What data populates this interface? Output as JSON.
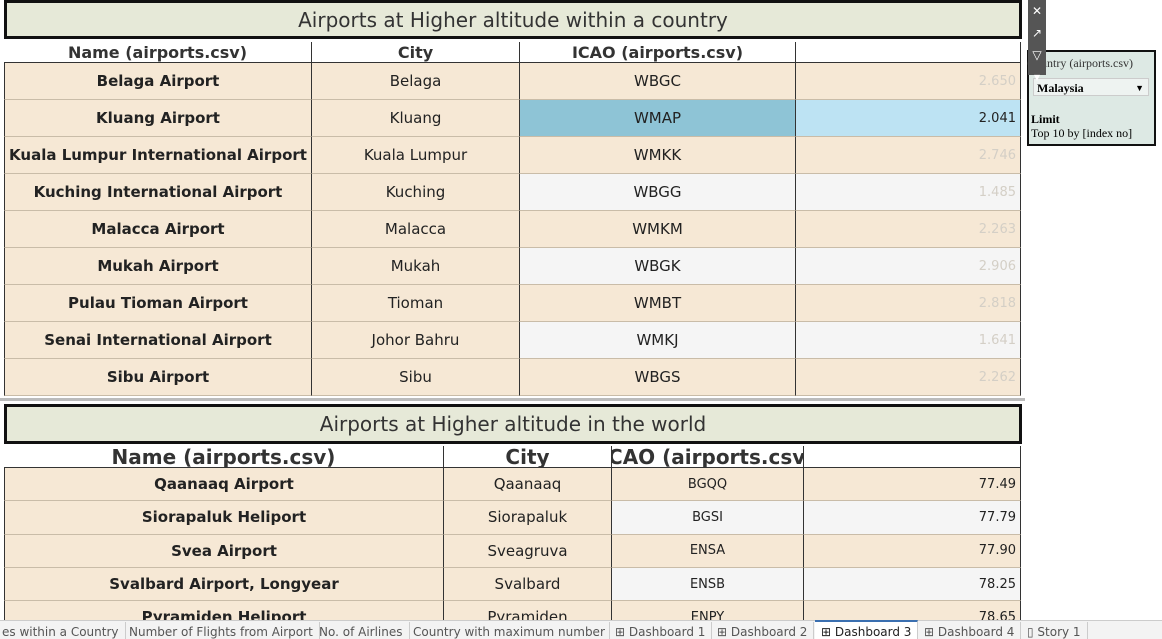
{
  "top_panel": {
    "title": "Airports at Higher altitude within a country",
    "headers": [
      "Name (airports.csv)",
      "City",
      "ICAO (airports.csv)"
    ],
    "rows": [
      [
        "Belaga Airport",
        "Belaga",
        "WBGC",
        "2.650"
      ],
      [
        "Kluang Airport",
        "Kluang",
        "WMAP",
        "2.041"
      ],
      [
        "Kuala Lumpur International Airport",
        "Kuala Lumpur",
        "WMKK",
        "2.746"
      ],
      [
        "Kuching International Airport",
        "Kuching",
        "WBGG",
        "1.485"
      ],
      [
        "Malacca Airport",
        "Malacca",
        "WMKM",
        "2.263"
      ],
      [
        "Mukah Airport",
        "Mukah",
        "WBGK",
        "2.906"
      ],
      [
        "Pulau Tioman Airport",
        "Tioman",
        "WMBT",
        "2.818"
      ],
      [
        "Senai International Airport",
        "Johor Bahru",
        "WMKJ",
        "1.641"
      ],
      [
        "Sibu Airport",
        "Sibu",
        "WBGS",
        "2.262"
      ]
    ]
  },
  "bottom_panel": {
    "title": "Airports at Higher altitude in the world",
    "headers": [
      "Name (airports.csv)",
      "City",
      "ICAO (airports.csv)"
    ],
    "rows": [
      [
        "Qaanaaq Airport",
        "Qaanaaq",
        "BGQQ",
        "77.49"
      ],
      [
        "Siorapaluk Heliport",
        "Siorapaluk",
        "BGSI",
        "77.79"
      ],
      [
        "Svea Airport",
        "Sveagruva",
        "ENSA",
        "77.90"
      ],
      [
        "Svalbard Airport, Longyear",
        "Svalbard",
        "ENSB",
        "78.25"
      ],
      [
        "Pyramiden Heliport",
        "Pyramiden",
        "ENPY",
        "78.65"
      ]
    ]
  },
  "filter": {
    "title": "Country (airports.csv)",
    "selected": "Malaysia",
    "limit_label": "Limit",
    "limit_value": "Top 10 by [index no]"
  },
  "tabs": [
    "es within a Country",
    "Number of Flights from Airport",
    "No. of Airlines",
    "Country with maximum number",
    "Dashboard 1",
    "Dashboard 2",
    "Dashboard 3",
    "Dashboard 4",
    "Story 1"
  ]
}
